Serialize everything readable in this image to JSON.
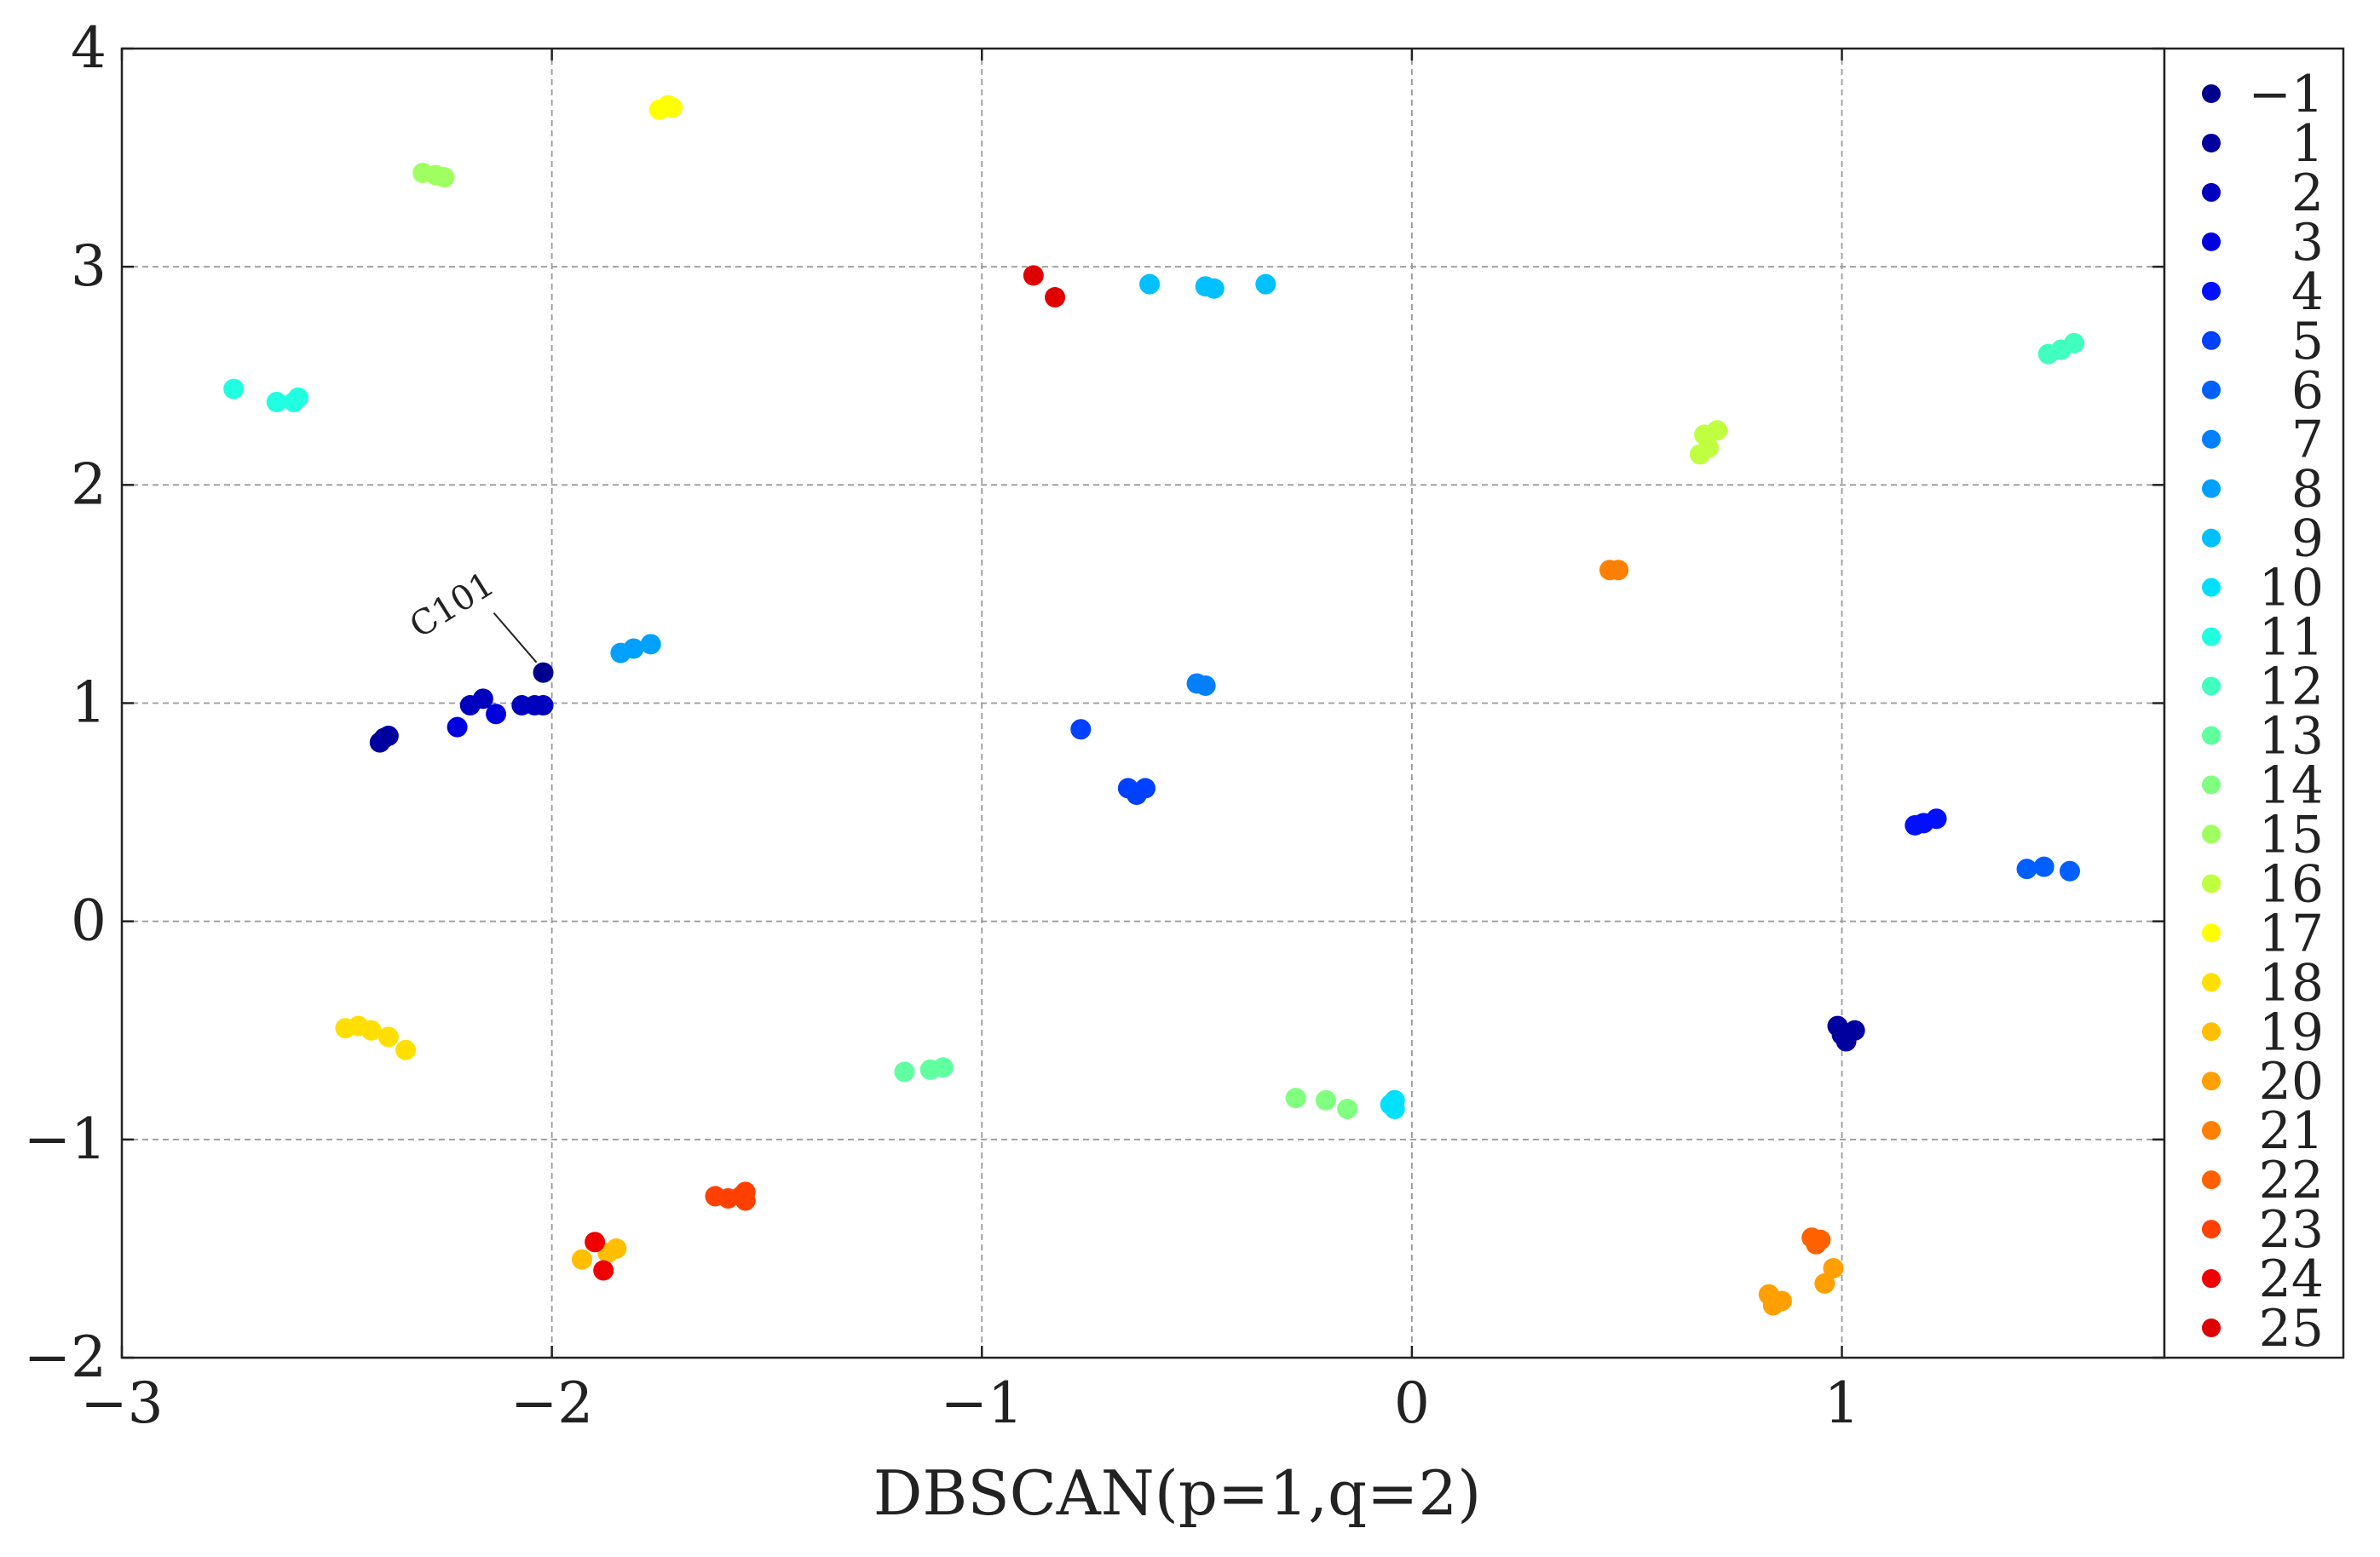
{
  "chart_data": {
    "type": "scatter",
    "title": "",
    "xlabel": "DBSCAN(p=1,q=2)",
    "ylabel": "",
    "xlim": [
      -3,
      1.75
    ],
    "ylim": [
      -2,
      4
    ],
    "xticks": [
      -3,
      -2,
      -1,
      0,
      1
    ],
    "yticks": [
      -2,
      -1,
      0,
      1,
      2,
      3,
      4
    ],
    "xtick_labels": [
      "−3",
      "−2",
      "−1",
      "0",
      "1"
    ],
    "ytick_labels": [
      "−2",
      "−1",
      "0",
      "1",
      "2",
      "3",
      "4"
    ],
    "grid": true,
    "legend_position": "right",
    "annotation": {
      "text": "C101",
      "x": -2.02,
      "y": 1.14
    },
    "series": [
      {
        "name": "−1",
        "color": "#00008f",
        "points": [
          [
            -2.02,
            1.14
          ]
        ]
      },
      {
        "name": "1",
        "color": "#00009f",
        "points": [
          [
            -2.39,
            0.84
          ],
          [
            -2.4,
            0.82
          ],
          [
            -2.38,
            0.85
          ],
          [
            0.99,
            -0.48
          ],
          [
            1.01,
            -0.55
          ],
          [
            1.03,
            -0.5
          ],
          [
            1.0,
            -0.52
          ]
        ]
      },
      {
        "name": "2",
        "color": "#0000bf",
        "points": [
          [
            -2.16,
            1.02
          ],
          [
            -2.19,
            0.99
          ],
          [
            -2.07,
            0.99
          ],
          [
            -2.04,
            0.99
          ],
          [
            -2.02,
            0.99
          ]
        ]
      },
      {
        "name": "3",
        "color": "#0000df",
        "points": [
          [
            -2.22,
            0.89
          ],
          [
            -2.13,
            0.95
          ]
        ]
      },
      {
        "name": "4",
        "color": "#0010ff",
        "points": [
          [
            1.17,
            0.44
          ],
          [
            1.19,
            0.45
          ],
          [
            1.22,
            0.47
          ]
        ]
      },
      {
        "name": "5",
        "color": "#0040ff",
        "points": [
          [
            -0.66,
            0.61
          ],
          [
            -0.64,
            0.58
          ],
          [
            -0.62,
            0.61
          ],
          [
            -0.77,
            0.88
          ]
        ]
      },
      {
        "name": "6",
        "color": "#0060ff",
        "points": [
          [
            1.43,
            0.24
          ],
          [
            1.47,
            0.25
          ],
          [
            1.53,
            0.23
          ]
        ]
      },
      {
        "name": "7",
        "color": "#0080ff",
        "points": [
          [
            -0.5,
            1.09
          ],
          [
            -0.48,
            1.08
          ]
        ]
      },
      {
        "name": "8",
        "color": "#00a0ff",
        "points": [
          [
            -1.84,
            1.23
          ],
          [
            -1.81,
            1.25
          ],
          [
            -1.77,
            1.27
          ]
        ]
      },
      {
        "name": "9",
        "color": "#00c0ff",
        "points": [
          [
            -0.61,
            2.92
          ],
          [
            -0.48,
            2.91
          ],
          [
            -0.46,
            2.9
          ],
          [
            -0.34,
            2.92
          ]
        ]
      },
      {
        "name": "10",
        "color": "#00e0ff",
        "points": [
          [
            -0.04,
            -0.82
          ],
          [
            -0.04,
            -0.86
          ],
          [
            -0.05,
            -0.84
          ]
        ]
      },
      {
        "name": "11",
        "color": "#20ffdf",
        "points": [
          [
            -2.74,
            2.44
          ],
          [
            -2.64,
            2.38
          ],
          [
            -2.6,
            2.38
          ],
          [
            -2.59,
            2.4
          ]
        ]
      },
      {
        "name": "12",
        "color": "#40ffbf",
        "points": [
          [
            1.48,
            2.6
          ],
          [
            1.51,
            2.62
          ],
          [
            1.54,
            2.65
          ]
        ]
      },
      {
        "name": "13",
        "color": "#60ff9f",
        "points": [
          [
            -1.18,
            -0.69
          ],
          [
            -1.12,
            -0.68
          ],
          [
            -1.09,
            -0.67
          ]
        ]
      },
      {
        "name": "14",
        "color": "#80ff80",
        "points": [
          [
            -0.27,
            -0.81
          ],
          [
            -0.2,
            -0.82
          ],
          [
            -0.15,
            -0.86
          ]
        ]
      },
      {
        "name": "15",
        "color": "#a0ff60",
        "points": [
          [
            -2.3,
            3.43
          ],
          [
            -2.27,
            3.42
          ],
          [
            -2.25,
            3.41
          ]
        ]
      },
      {
        "name": "16",
        "color": "#bfff40",
        "points": [
          [
            0.67,
            2.14
          ],
          [
            0.69,
            2.17
          ],
          [
            0.68,
            2.23
          ],
          [
            0.71,
            2.25
          ]
        ]
      },
      {
        "name": "17",
        "color": "#ffff00",
        "points": [
          [
            -1.75,
            3.72
          ],
          [
            -1.73,
            3.74
          ],
          [
            -1.72,
            3.73
          ]
        ]
      },
      {
        "name": "18",
        "color": "#ffdf00",
        "points": [
          [
            -2.48,
            -0.49
          ],
          [
            -2.42,
            -0.5
          ],
          [
            -2.38,
            -0.53
          ],
          [
            -2.34,
            -0.59
          ],
          [
            -2.45,
            -0.48
          ]
        ]
      },
      {
        "name": "19",
        "color": "#ffbf00",
        "points": [
          [
            -1.93,
            -1.55
          ],
          [
            -1.85,
            -1.5
          ],
          [
            -1.87,
            -1.52
          ]
        ]
      },
      {
        "name": "20",
        "color": "#ff9f00",
        "points": [
          [
            0.83,
            -1.71
          ],
          [
            0.86,
            -1.74
          ],
          [
            0.84,
            -1.76
          ],
          [
            0.96,
            -1.66
          ],
          [
            0.98,
            -1.59
          ]
        ]
      },
      {
        "name": "21",
        "color": "#ff7f00",
        "points": [
          [
            0.46,
            1.61
          ],
          [
            0.48,
            1.61
          ]
        ]
      },
      {
        "name": "22",
        "color": "#ff6000",
        "points": [
          [
            0.93,
            -1.45
          ],
          [
            0.94,
            -1.48
          ],
          [
            0.95,
            -1.46
          ]
        ]
      },
      {
        "name": "23",
        "color": "#ff4000",
        "points": [
          [
            -1.62,
            -1.26
          ],
          [
            -1.59,
            -1.27
          ],
          [
            -1.56,
            -1.26
          ],
          [
            -1.55,
            -1.24
          ],
          [
            -1.55,
            -1.28
          ]
        ]
      },
      {
        "name": "24",
        "color": "#f00000",
        "points": [
          [
            -1.9,
            -1.47
          ],
          [
            -1.88,
            -1.6
          ]
        ]
      },
      {
        "name": "25",
        "color": "#df0000",
        "points": [
          [
            -0.88,
            2.96
          ],
          [
            -0.83,
            2.86
          ]
        ]
      }
    ]
  }
}
